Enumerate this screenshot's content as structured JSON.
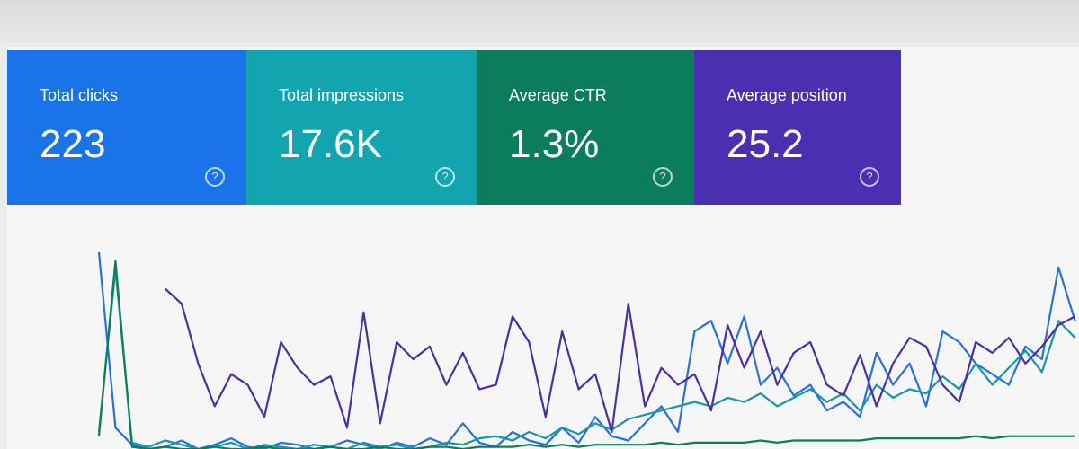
{
  "cards": [
    {
      "label": "Total clicks",
      "value": "223",
      "color": "#1a73e8"
    },
    {
      "label": "Total impressions",
      "value": "17.6K",
      "color": "#12a4af"
    },
    {
      "label": "Average CTR",
      "value": "1.3%",
      "color": "#0b7d5c"
    },
    {
      "label": "Average position",
      "value": "25.2",
      "color": "#4a2fb0"
    }
  ],
  "chart": {
    "ylim": [
      0,
      100
    ],
    "series": [
      {
        "color": "#2a6fe0",
        "values": [
          92,
          10,
          2,
          0,
          1,
          4,
          0,
          2,
          5,
          1,
          0,
          3,
          2,
          0,
          1,
          4,
          2,
          0,
          3,
          1,
          5,
          2,
          12,
          3,
          1,
          8,
          4,
          2,
          10,
          3,
          15,
          6,
          4,
          12,
          20,
          8,
          55,
          60,
          40,
          62,
          30,
          38,
          25,
          30,
          18,
          22,
          15,
          45,
          30,
          40,
          20,
          55,
          50,
          40,
          35,
          30,
          48,
          42,
          85,
          60
        ]
      },
      {
        "color": "#1497a8",
        "values": [
          8,
          84,
          3,
          1,
          4,
          2,
          0,
          1,
          3,
          0,
          2,
          1,
          0,
          2,
          1,
          0,
          3,
          1,
          2,
          0,
          1,
          3,
          2,
          5,
          6,
          4,
          8,
          5,
          10,
          7,
          12,
          9,
          14,
          16,
          18,
          20,
          22,
          20,
          24,
          22,
          26,
          20,
          24,
          28,
          22,
          26,
          18,
          30,
          24,
          28,
          26,
          34,
          28,
          40,
          30,
          38,
          46,
          36,
          60,
          52
        ]
      },
      {
        "color": "#0c7f54",
        "values": [
          6,
          88,
          1,
          0,
          1,
          0,
          0,
          1,
          0,
          0,
          1,
          0,
          0,
          0,
          1,
          0,
          0,
          1,
          0,
          0,
          1,
          1,
          0,
          1,
          1,
          1,
          2,
          1,
          2,
          1,
          2,
          2,
          2,
          2,
          3,
          2,
          3,
          3,
          3,
          3,
          4,
          3,
          4,
          4,
          4,
          4,
          4,
          5,
          5,
          5,
          5,
          5,
          5,
          6,
          5,
          6,
          6,
          6,
          6,
          6
        ]
      },
      {
        "color": "#4b2ea6",
        "values": [
          null,
          null,
          null,
          null,
          75,
          68,
          40,
          20,
          35,
          30,
          15,
          50,
          38,
          30,
          34,
          10,
          64,
          12,
          50,
          42,
          48,
          30,
          45,
          28,
          30,
          62,
          50,
          15,
          55,
          28,
          35,
          8,
          68,
          20,
          38,
          30,
          35,
          18,
          58,
          38,
          55,
          30,
          45,
          50,
          30,
          25,
          44,
          20,
          40,
          52,
          48,
          30,
          22,
          50,
          45,
          52,
          40,
          48,
          58,
          62
        ]
      }
    ]
  }
}
